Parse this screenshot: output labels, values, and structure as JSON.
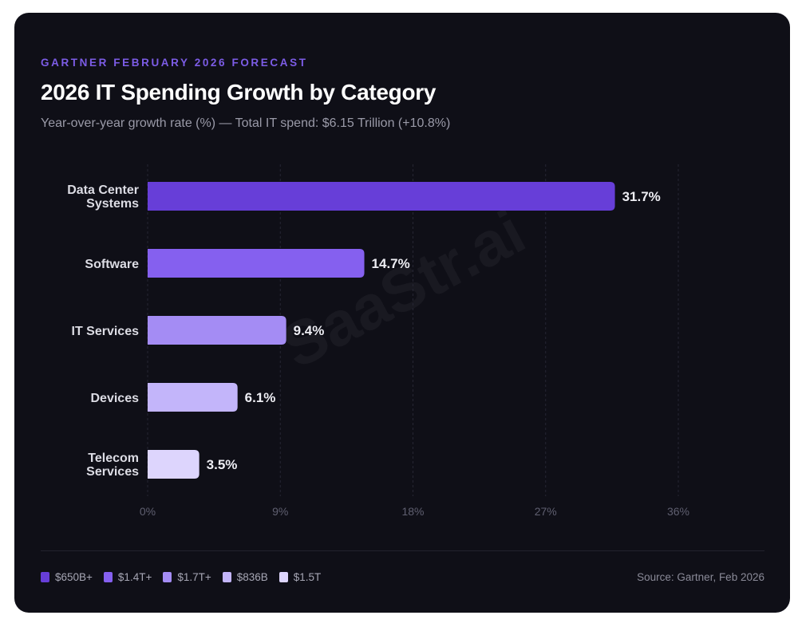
{
  "header": {
    "eyebrow": "GARTNER FEBRUARY 2026 FORECAST",
    "title": "2026 IT Spending Growth by Category",
    "subtitle": "Year-over-year growth rate (%) — Total IT spend: $6.15 Trillion (+10.8%)"
  },
  "watermark": "SaaStr.ai",
  "chart_data": {
    "type": "bar",
    "orientation": "horizontal",
    "title": "2026 IT Spending Growth by Category",
    "categories": [
      "Data Center Systems",
      "Software",
      "IT Services",
      "Devices",
      "Telecom Services"
    ],
    "category_lines": [
      [
        "Data Center",
        "Systems"
      ],
      [
        "Software"
      ],
      [
        "IT Services"
      ],
      [
        "Devices"
      ],
      [
        "Telecom",
        "Services"
      ]
    ],
    "values": [
      31.7,
      14.7,
      9.4,
      6.1,
      3.5
    ],
    "value_labels": [
      "31.7%",
      "14.7%",
      "9.4%",
      "6.1%",
      "3.5%"
    ],
    "colors": [
      "#673ed8",
      "#8560ef",
      "#a48cf4",
      "#c3b5fa",
      "#ddd5fd"
    ],
    "xlim": [
      0,
      36
    ],
    "xticks": [
      0,
      9,
      18,
      27,
      36
    ],
    "xtick_labels": [
      "0%",
      "9%",
      "18%",
      "27%",
      "36%"
    ],
    "grid": true,
    "legend": {
      "placement": "bottom-left",
      "entries": [
        "$650B+",
        "$1.4T+",
        "$1.7T+",
        "$836B",
        "$1.5T"
      ]
    }
  },
  "footer": {
    "source": "Source: Gartner, Feb 2026"
  }
}
